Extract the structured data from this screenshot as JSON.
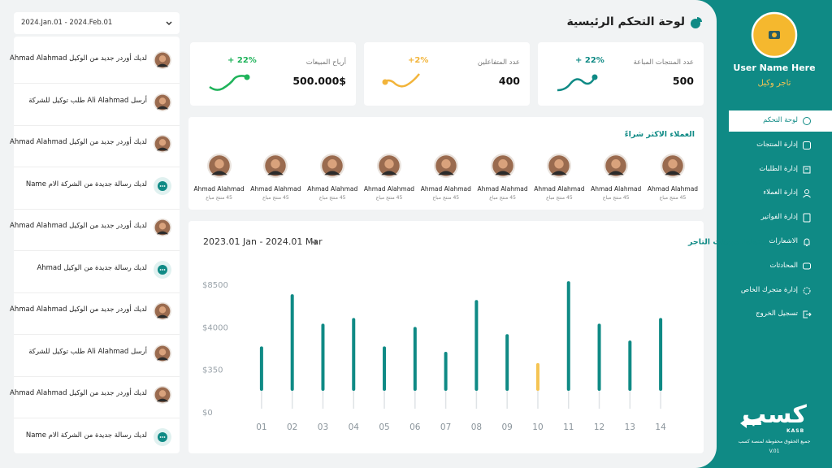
{
  "header": {
    "title": "لوحة التحكم الرئيسية",
    "date_range": "2024.Jan.01 - 2024.Feb.01"
  },
  "sidebar": {
    "user_name": "User Name Here",
    "role": "تاجر وكيل",
    "menu": [
      "لوحة التحكم",
      "إدارة المنتجات",
      "إدارة الطلبات",
      "إدارة العملاء",
      "إدارة الفواتير",
      "الاشعارات",
      "المحادثات",
      "إدارة متجرك الخاص",
      "تسجيل الخروج"
    ],
    "logo": "كسب",
    "logo_sub": "KASB",
    "copyright": "جميع الحقوق محفوظة لمنصة كسب",
    "version": "V.01"
  },
  "stats": [
    {
      "label": "عدد المنتجات المباعة",
      "value": "500",
      "change": "+ 22%",
      "color": "#0f8a85"
    },
    {
      "label": "عدد المتفاعلين",
      "value": "400",
      "change": "+2%",
      "color": "#f2b43a"
    },
    {
      "label": "أرباح المبيعات",
      "value": "500.000$",
      "change": "+ 22%",
      "color": "#1fb35a"
    }
  ],
  "top_customers": {
    "title": "العملاء الاكثر شراءً",
    "customers": [
      {
        "name": "Ahmad Alahmad",
        "detail": "45 منتج مباع"
      },
      {
        "name": "Ahmad Alahmad",
        "detail": "45 منتج مباع"
      },
      {
        "name": "Ahmad Alahmad",
        "detail": "45 منتج مباع"
      },
      {
        "name": "Ahmad Alahmad",
        "detail": "45 منتج مباع"
      },
      {
        "name": "Ahmad Alahmad",
        "detail": "45 منتج مباع"
      },
      {
        "name": "Ahmad Alahmad",
        "detail": "45 منتج مباع"
      },
      {
        "name": "Ahmad Alahmad",
        "detail": "45 منتج مباع"
      },
      {
        "name": "Ahmad Alahmad",
        "detail": "45 منتج مباع"
      },
      {
        "name": "Ahmad Alahmad",
        "detail": "45 منتج مباع"
      }
    ]
  },
  "notifications": [
    "لديك أوردر جديد من الوكيل Ahmad Alahmad",
    "أرسل Ali Alahmad طلب توكيل للشركة",
    "لديك أوردر جديد من الوكيل Ahmad Alahmad",
    "لديك رسالة جديدة من الشركة الام Name",
    "لديك أوردر جديد من الوكيل Ahmad Alahmad",
    "لديك رسالة جديدة من الوكيل Ahmad",
    "لديك أوردر جديد من الوكيل Ahmad Alahmad",
    "أرسل Ali Alahmad طلب توكيل للشركة",
    "لديك أوردر جديد من الوكيل Ahmad Alahmad",
    "لديك رسالة جديدة من الشركة الام Name"
  ],
  "chart_data": {
    "type": "bar",
    "title": "مخطط مبيعات التاجر",
    "subtitle": "2023.01 Jan - 2024.01 Mar",
    "categories": [
      "01",
      "02",
      "03",
      "04",
      "05",
      "06",
      "07",
      "08",
      "09",
      "10",
      "11",
      "12",
      "13",
      "14"
    ],
    "values": [
      2400,
      7550,
      4430,
      5040,
      2400,
      4090,
      1930,
      6940,
      3450,
      970,
      8930,
      4430,
      2900,
      5040
    ],
    "colors": [
      "#0f8a85",
      "#0f8a85",
      "#0f8a85",
      "#0f8a85",
      "#0f8a85",
      "#0f8a85",
      "#0f8a85",
      "#0f8a85",
      "#0f8a85",
      "#f5c453",
      "#0f8a85",
      "#0f8a85",
      "#0f8a85",
      "#0f8a85"
    ],
    "ylim": [
      0,
      9000
    ],
    "yticks": [
      {
        "value": 0,
        "label": "$0"
      },
      {
        "value": 350,
        "label": "$350"
      },
      {
        "value": 4000,
        "label": "$4000"
      },
      {
        "value": 8500,
        "label": "$8500"
      }
    ]
  }
}
